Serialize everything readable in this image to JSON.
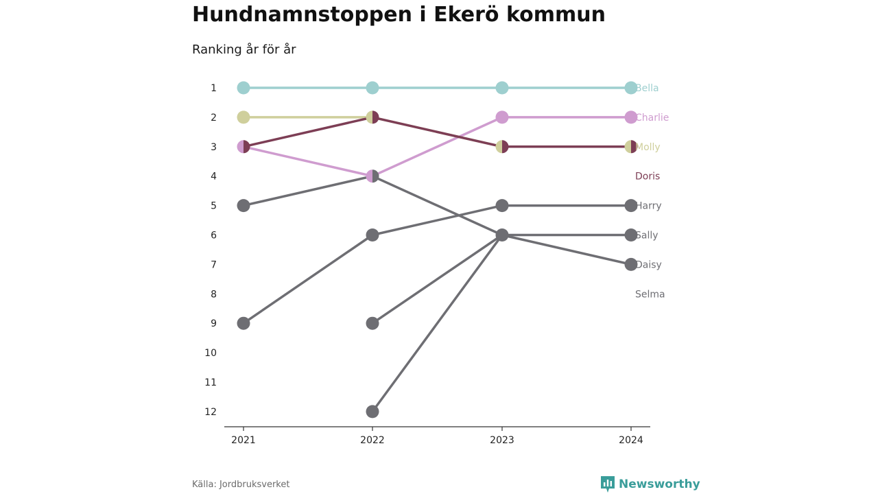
{
  "header": {
    "title": "Hundnamnstoppen i Ekerö kommun",
    "subtitle": "Ranking år för år"
  },
  "footer": {
    "source": "Källa: Jordbruksverket",
    "brand": "Newsworthy",
    "brand_icon": "newsworthy-logo-icon",
    "brand_color": "#3a9d9a"
  },
  "chart_data": {
    "type": "line",
    "title": "Hundnamnstoppen i Ekerö kommun",
    "subtitle": "Ranking år för år",
    "x": [
      "2021",
      "2022",
      "2023",
      "2024"
    ],
    "y_ticks": [
      1,
      2,
      3,
      4,
      5,
      6,
      7,
      8,
      9,
      10,
      11,
      12
    ],
    "ylim": [
      1,
      12
    ],
    "y_inverted": true,
    "grid": false,
    "legend": "direct-labels-right",
    "series": [
      {
        "name": "Bella",
        "color": "#9ecfcf",
        "values": [
          1,
          1,
          1,
          1
        ]
      },
      {
        "name": "Charlie",
        "color": "#cf9ccf",
        "values": [
          3,
          4,
          2,
          2
        ]
      },
      {
        "name": "Molly",
        "color": "#cfcf9c",
        "values": [
          2,
          2,
          3,
          3
        ]
      },
      {
        "name": "Doris",
        "color": "#7d3e55",
        "values": [
          3,
          2,
          3,
          3
        ]
      },
      {
        "name": "Harry",
        "color": "#6e6e73",
        "values": [
          9,
          6,
          5,
          5
        ]
      },
      {
        "name": "Sally",
        "color": "#6e6e73",
        "values": [
          null,
          9,
          6,
          6
        ]
      },
      {
        "name": "Daisy",
        "color": "#6e6e73",
        "values": [
          5,
          4,
          6,
          7
        ]
      },
      {
        "name": "Selma",
        "color": "#6e6e73",
        "values": [
          null,
          12,
          6,
          null
        ]
      }
    ]
  }
}
